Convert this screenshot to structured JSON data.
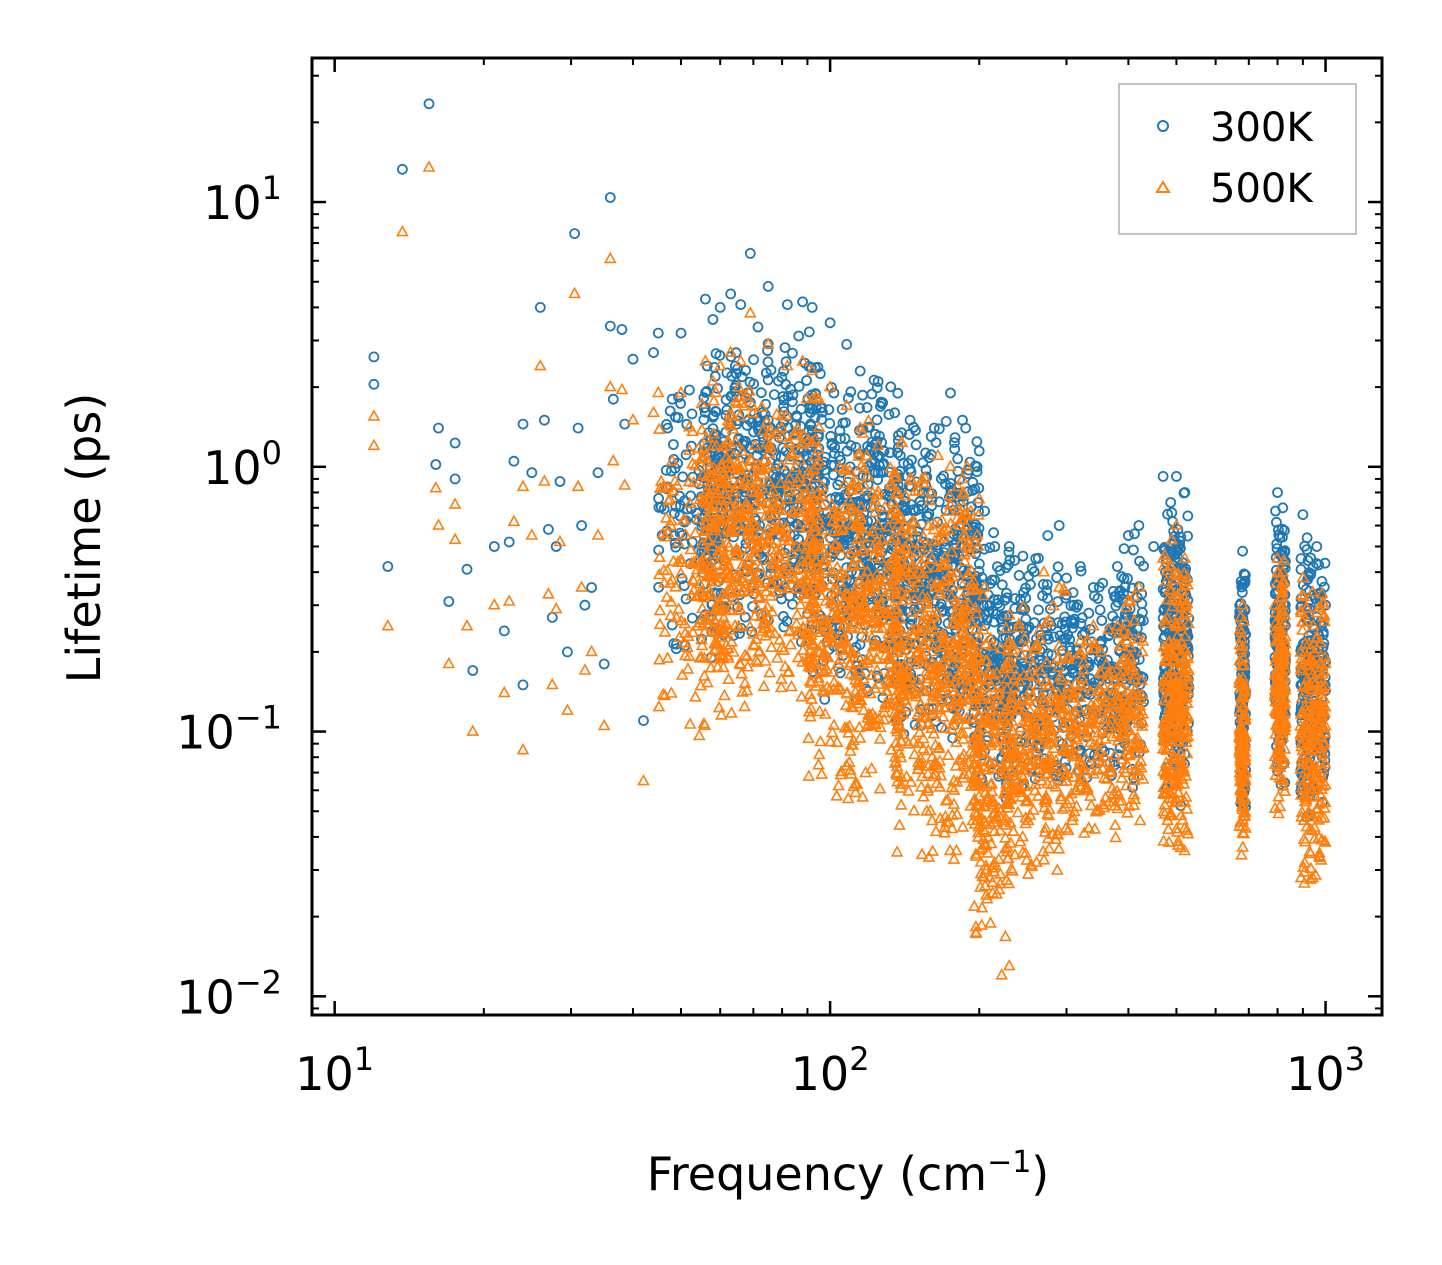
{
  "chart_data": {
    "type": "scatter",
    "xscale": "log",
    "yscale": "log",
    "xlabel": "Frequency (cm",
    "xlabel_sup": "−1",
    "xlabel_close": ")",
    "ylabel": "Lifetime (ps)",
    "xlim": [
      9,
      1300
    ],
    "ylim": [
      0.0085,
      35
    ],
    "xticks": [
      {
        "base": "10",
        "exp": "1"
      },
      {
        "base": "10",
        "exp": "2"
      },
      {
        "base": "10",
        "exp": "3"
      }
    ],
    "xtick_values": [
      10,
      100,
      1000
    ],
    "yticks": [
      {
        "base": "10",
        "exp": "−2"
      },
      {
        "base": "10",
        "exp": "−1"
      },
      {
        "base": "10",
        "exp": "0"
      },
      {
        "base": "10",
        "exp": "1"
      }
    ],
    "ytick_values": [
      0.01,
      0.1,
      1,
      10
    ],
    "legend_position": "top-right",
    "series": [
      {
        "name": "300K",
        "color": "#1f77b4",
        "marker": "circle",
        "points": [
          [
            12,
            2.6
          ],
          [
            12,
            2.05
          ],
          [
            12.8,
            0.42
          ],
          [
            13.7,
            13.3
          ],
          [
            15.5,
            23.5
          ],
          [
            16,
            1.02
          ],
          [
            16.2,
            1.4
          ],
          [
            17,
            0.31
          ],
          [
            17.5,
            0.9
          ],
          [
            17.5,
            1.23
          ],
          [
            18.5,
            0.41
          ],
          [
            19,
            0.17
          ],
          [
            21,
            0.5
          ],
          [
            22,
            0.24
          ],
          [
            22.5,
            0.52
          ],
          [
            23,
            1.05
          ],
          [
            24,
            1.45
          ],
          [
            24,
            0.15
          ],
          [
            25,
            0.95
          ],
          [
            26,
            4.0
          ],
          [
            26.5,
            1.5
          ],
          [
            27,
            0.58
          ],
          [
            27.5,
            0.27
          ],
          [
            28,
            0.5
          ],
          [
            28.5,
            0.88
          ],
          [
            29.5,
            0.2
          ],
          [
            30.5,
            7.6
          ],
          [
            31,
            1.4
          ],
          [
            31.5,
            0.6
          ],
          [
            32,
            0.3
          ],
          [
            33,
            0.35
          ],
          [
            34,
            0.95
          ],
          [
            35,
            0.18
          ],
          [
            36,
            10.4
          ],
          [
            36,
            3.4
          ],
          [
            36.5,
            1.8
          ],
          [
            38,
            3.3
          ],
          [
            38.5,
            1.45
          ],
          [
            40,
            2.55
          ],
          [
            42,
            0.11
          ],
          [
            44,
            2.7
          ],
          [
            45,
            3.2
          ],
          [
            47,
            1.4
          ],
          [
            48,
            1.8
          ],
          [
            50,
            3.2
          ],
          [
            52,
            1.95
          ],
          [
            56,
            4.3
          ],
          [
            58,
            3.6
          ],
          [
            60,
            4.0
          ],
          [
            63,
            4.5
          ],
          [
            66,
            4.1
          ],
          [
            69,
            6.4
          ],
          [
            75,
            4.8
          ],
          [
            82,
            4.1
          ],
          [
            88,
            4.2
          ],
          [
            92,
            4.0
          ],
          [
            100,
            3.5
          ],
          [
            108,
            2.9
          ],
          [
            115,
            2.3
          ],
          [
            125,
            2.1
          ],
          [
            135,
            1.6
          ],
          [
            145,
            1.5
          ],
          [
            160,
            1.3
          ],
          [
            175,
            1.9
          ],
          [
            185,
            1.5
          ],
          [
            198,
            1.0
          ],
          [
            205,
            0.68
          ],
          [
            215,
            0.5
          ],
          [
            230,
            0.5
          ],
          [
            245,
            0.46
          ],
          [
            260,
            0.45
          ],
          [
            275,
            0.55
          ],
          [
            290,
            0.6
          ],
          [
            300,
            0.38
          ],
          [
            320,
            0.42
          ],
          [
            340,
            0.35
          ],
          [
            380,
            0.42
          ],
          [
            400,
            0.55
          ],
          [
            420,
            0.6
          ],
          [
            450,
            0.5
          ],
          [
            470,
            0.92
          ],
          [
            500,
            0.92
          ],
          [
            520,
            0.8
          ],
          [
            680,
            0.48
          ],
          [
            800,
            0.8
          ],
          [
            820,
            0.7
          ],
          [
            900,
            0.66
          ],
          [
            960,
            0.5
          ],
          [
            1000,
            0.3
          ]
        ],
        "bands": [
          {
            "f0": 45,
            "f1": 62,
            "y0": 0.15,
            "y1": 3.0,
            "n": 120
          },
          {
            "f0": 55,
            "f1": 95,
            "y0": 0.2,
            "y1": 3.6,
            "n": 500
          },
          {
            "f0": 90,
            "f1": 140,
            "y0": 0.12,
            "y1": 2.4,
            "n": 450
          },
          {
            "f0": 135,
            "f1": 200,
            "y0": 0.08,
            "y1": 1.7,
            "n": 450
          },
          {
            "f0": 195,
            "f1": 230,
            "y0": 0.05,
            "y1": 0.65,
            "n": 160
          },
          {
            "f0": 225,
            "f1": 300,
            "y0": 0.05,
            "y1": 0.5,
            "n": 240
          },
          {
            "f0": 300,
            "f1": 380,
            "y0": 0.06,
            "y1": 0.42,
            "n": 160
          },
          {
            "f0": 380,
            "f1": 430,
            "y0": 0.06,
            "y1": 0.6,
            "n": 120
          },
          {
            "f0": 470,
            "f1": 530,
            "y0": 0.05,
            "y1": 0.85,
            "n": 260
          },
          {
            "f0": 670,
            "f1": 690,
            "y0": 0.035,
            "y1": 0.48,
            "n": 120
          },
          {
            "f0": 790,
            "f1": 830,
            "y0": 0.06,
            "y1": 0.7,
            "n": 180
          },
          {
            "f0": 890,
            "f1": 1000,
            "y0": 0.04,
            "y1": 0.6,
            "n": 220
          }
        ]
      },
      {
        "name": "500K",
        "color": "#ff7f0e",
        "marker": "triangle",
        "points": [
          [
            12,
            1.55
          ],
          [
            12,
            1.2
          ],
          [
            12.8,
            0.25
          ],
          [
            13.7,
            7.7
          ],
          [
            15.5,
            13.5
          ],
          [
            16,
            0.83
          ],
          [
            16.2,
            0.6
          ],
          [
            17,
            0.18
          ],
          [
            17.5,
            0.72
          ],
          [
            17.5,
            0.53
          ],
          [
            18.5,
            0.25
          ],
          [
            19,
            0.1
          ],
          [
            21,
            0.3
          ],
          [
            22,
            0.14
          ],
          [
            22.5,
            0.31
          ],
          [
            23,
            0.62
          ],
          [
            24,
            0.84
          ],
          [
            24,
            0.085
          ],
          [
            25,
            0.55
          ],
          [
            26,
            2.4
          ],
          [
            26.5,
            0.88
          ],
          [
            27,
            0.33
          ],
          [
            27.5,
            0.15
          ],
          [
            28,
            0.29
          ],
          [
            28.5,
            0.52
          ],
          [
            29.5,
            0.12
          ],
          [
            30.5,
            4.5
          ],
          [
            31,
            0.84
          ],
          [
            31.5,
            0.35
          ],
          [
            32,
            0.17
          ],
          [
            33,
            0.2
          ],
          [
            34,
            0.55
          ],
          [
            35,
            0.105
          ],
          [
            36,
            6.1
          ],
          [
            36,
            2.0
          ],
          [
            36.5,
            1.05
          ],
          [
            38,
            1.95
          ],
          [
            38.5,
            0.85
          ],
          [
            40,
            1.5
          ],
          [
            42,
            0.065
          ],
          [
            44,
            1.6
          ],
          [
            45,
            1.9
          ],
          [
            47,
            0.83
          ],
          [
            48,
            1.05
          ],
          [
            50,
            1.9
          ],
          [
            52,
            1.15
          ],
          [
            56,
            2.5
          ],
          [
            58,
            2.1
          ],
          [
            60,
            2.4
          ],
          [
            63,
            2.7
          ],
          [
            66,
            2.5
          ],
          [
            69,
            3.8
          ],
          [
            75,
            2.9
          ],
          [
            82,
            2.4
          ],
          [
            88,
            2.5
          ],
          [
            92,
            2.3
          ],
          [
            100,
            2.0
          ],
          [
            108,
            1.7
          ],
          [
            115,
            1.4
          ],
          [
            125,
            1.2
          ],
          [
            135,
            0.95
          ],
          [
            145,
            0.9
          ],
          [
            160,
            0.8
          ],
          [
            165,
            1.1
          ],
          [
            175,
            1.0
          ],
          [
            185,
            0.9
          ],
          [
            198,
            0.55
          ],
          [
            205,
            0.35
          ],
          [
            210,
            0.028
          ],
          [
            222,
            0.012
          ],
          [
            230,
            0.013
          ],
          [
            270,
            0.4
          ],
          [
            290,
            0.35
          ],
          [
            320,
            0.22
          ],
          [
            340,
            0.25
          ],
          [
            380,
            0.25
          ],
          [
            420,
            0.35
          ],
          [
            470,
            0.45
          ],
          [
            500,
            0.6
          ],
          [
            520,
            0.45
          ],
          [
            680,
            0.3
          ],
          [
            800,
            0.45
          ],
          [
            820,
            0.4
          ],
          [
            900,
            0.38
          ],
          [
            960,
            0.28
          ],
          [
            1000,
            0.18
          ]
        ],
        "bands": [
          {
            "f0": 45,
            "f1": 62,
            "y0": 0.08,
            "y1": 1.8,
            "n": 140
          },
          {
            "f0": 55,
            "f1": 95,
            "y0": 0.1,
            "y1": 2.4,
            "n": 550
          },
          {
            "f0": 90,
            "f1": 140,
            "y0": 0.05,
            "y1": 1.6,
            "n": 500
          },
          {
            "f0": 135,
            "f1": 200,
            "y0": 0.03,
            "y1": 1.1,
            "n": 520
          },
          {
            "f0": 195,
            "f1": 235,
            "y0": 0.013,
            "y1": 0.35,
            "n": 220
          },
          {
            "f0": 225,
            "f1": 300,
            "y0": 0.025,
            "y1": 0.35,
            "n": 260
          },
          {
            "f0": 300,
            "f1": 380,
            "y0": 0.035,
            "y1": 0.28,
            "n": 170
          },
          {
            "f0": 380,
            "f1": 430,
            "y0": 0.04,
            "y1": 0.35,
            "n": 120
          },
          {
            "f0": 470,
            "f1": 530,
            "y0": 0.03,
            "y1": 0.55,
            "n": 280
          },
          {
            "f0": 670,
            "f1": 690,
            "y0": 0.03,
            "y1": 0.3,
            "n": 130
          },
          {
            "f0": 790,
            "f1": 830,
            "y0": 0.045,
            "y1": 0.45,
            "n": 190
          },
          {
            "f0": 890,
            "f1": 1000,
            "y0": 0.023,
            "y1": 0.4,
            "n": 240
          }
        ]
      }
    ]
  }
}
